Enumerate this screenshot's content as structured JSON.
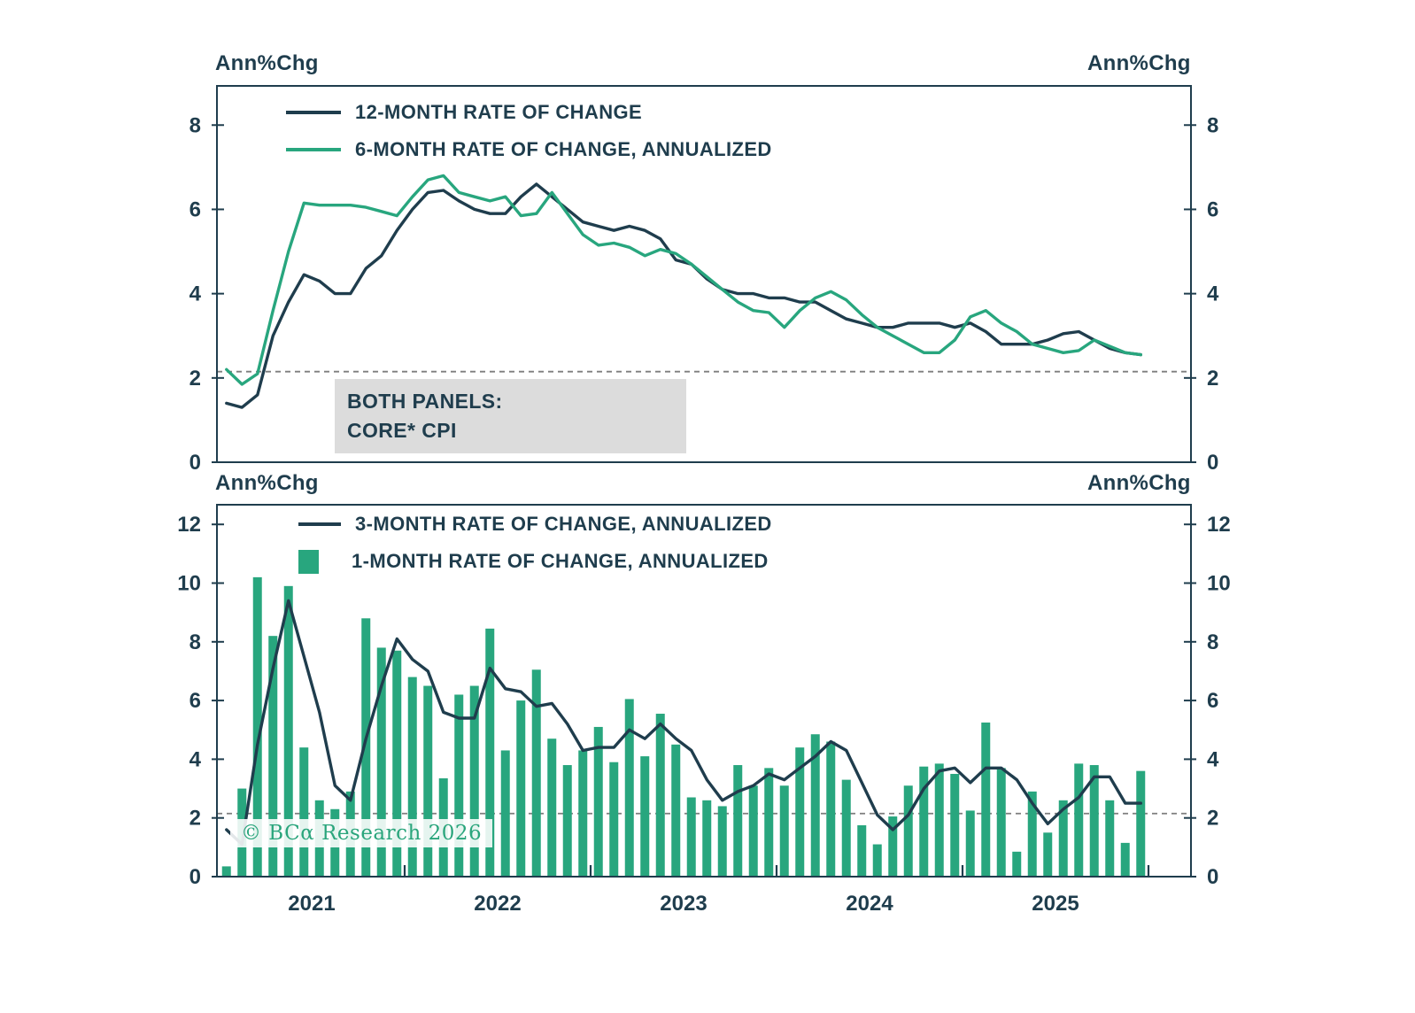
{
  "page": {
    "axis_unit_label": "Ann%Chg",
    "watermark": "© BCα Research 2026",
    "annotation": {
      "line1": "BOTH PANELS:",
      "line2": "CORE* CPI"
    }
  },
  "colors": {
    "dark": "#1F3D4D",
    "green": "#28A67E",
    "dashed": "#7E7E7E",
    "annotation_bg": "#DCDCDC"
  },
  "chart_data": [
    {
      "type": "line",
      "panel": "top",
      "ylabel_left": "Ann%Chg",
      "ylabel_right": "Ann%Chg",
      "ylim": [
        0,
        8.93
      ],
      "yticks": [
        0,
        2,
        4,
        6,
        8
      ],
      "reference_line": 2.15,
      "x_start": "2021-01",
      "x_frequency": "monthly",
      "x_points": 60,
      "legend_position": "top-left",
      "grid": false,
      "series": [
        {
          "name": "12-MONTH RATE OF CHANGE",
          "type": "line",
          "color_key": "dark",
          "values": [
            1.4,
            1.3,
            1.6,
            3.0,
            3.8,
            4.45,
            4.3,
            4.0,
            4.0,
            4.6,
            4.9,
            5.5,
            6.0,
            6.4,
            6.45,
            6.2,
            6.0,
            5.9,
            5.9,
            6.3,
            6.6,
            6.3,
            6.0,
            5.7,
            5.6,
            5.5,
            5.6,
            5.5,
            5.3,
            4.8,
            4.7,
            4.35,
            4.1,
            4.0,
            4.0,
            3.9,
            3.9,
            3.8,
            3.8,
            3.6,
            3.4,
            3.3,
            3.2,
            3.2,
            3.3,
            3.3,
            3.3,
            3.2,
            3.3,
            3.1,
            2.8,
            2.8,
            2.8,
            2.9,
            3.05,
            3.1,
            2.9,
            2.7,
            2.6,
            2.55
          ]
        },
        {
          "name": "6-MONTH RATE OF CHANGE, ANNUALIZED",
          "type": "line",
          "color_key": "green",
          "values": [
            2.2,
            1.85,
            2.1,
            3.6,
            5.0,
            6.15,
            6.1,
            6.1,
            6.1,
            6.05,
            5.95,
            5.85,
            6.3,
            6.7,
            6.8,
            6.4,
            6.3,
            6.2,
            6.3,
            5.85,
            5.9,
            6.4,
            5.9,
            5.4,
            5.15,
            5.2,
            5.1,
            4.9,
            5.05,
            4.95,
            4.7,
            4.4,
            4.1,
            3.8,
            3.6,
            3.55,
            3.2,
            3.6,
            3.9,
            4.05,
            3.85,
            3.5,
            3.2,
            3.0,
            2.8,
            2.6,
            2.6,
            2.9,
            3.45,
            3.6,
            3.3,
            3.1,
            2.8,
            2.7,
            2.6,
            2.65,
            2.9,
            2.75,
            2.6,
            2.55
          ]
        }
      ]
    },
    {
      "type": "bar",
      "panel": "bottom",
      "ylabel_left": "Ann%Chg",
      "ylabel_right": "Ann%Chg",
      "ylim": [
        0,
        12.67
      ],
      "yticks": [
        0,
        2,
        4,
        6,
        8,
        10,
        12
      ],
      "reference_line": 2.15,
      "x_start": "2021-01",
      "x_frequency": "monthly",
      "x_points": 60,
      "year_labels": [
        "2021",
        "2022",
        "2023",
        "2024",
        "2025"
      ],
      "legend_position": "top-left",
      "grid": false,
      "series": [
        {
          "name": "3-MONTH RATE OF CHANGE, ANNUALIZED",
          "type": "line",
          "color_key": "dark",
          "values": [
            1.6,
            1.1,
            4.5,
            7.1,
            9.4,
            7.5,
            5.6,
            3.1,
            2.6,
            4.7,
            6.5,
            8.1,
            7.4,
            7.0,
            5.6,
            5.4,
            5.4,
            7.1,
            6.4,
            6.3,
            5.8,
            5.9,
            5.2,
            4.3,
            4.4,
            4.4,
            5.0,
            4.7,
            5.2,
            4.7,
            4.3,
            3.3,
            2.6,
            2.9,
            3.1,
            3.5,
            3.3,
            3.7,
            4.1,
            4.6,
            4.3,
            3.2,
            2.1,
            1.6,
            2.1,
            3.0,
            3.6,
            3.7,
            3.2,
            3.7,
            3.7,
            3.3,
            2.5,
            1.8,
            2.3,
            2.7,
            3.4,
            3.4,
            2.5,
            2.5
          ]
        },
        {
          "name": "1-MONTH RATE OF CHANGE, ANNUALIZED",
          "type": "bar",
          "color_key": "green",
          "values": [
            0.35,
            3.0,
            10.2,
            8.2,
            9.9,
            4.4,
            2.6,
            2.3,
            2.9,
            8.8,
            7.8,
            7.7,
            6.8,
            6.5,
            3.35,
            6.2,
            6.5,
            8.45,
            4.3,
            6.0,
            7.05,
            4.7,
            3.8,
            4.3,
            5.1,
            3.9,
            6.05,
            4.1,
            5.55,
            4.5,
            2.7,
            2.6,
            2.4,
            3.8,
            3.1,
            3.7,
            3.1,
            4.4,
            4.85,
            4.6,
            3.3,
            1.75,
            1.1,
            2.05,
            3.1,
            3.75,
            3.85,
            3.5,
            2.25,
            5.25,
            3.7,
            0.85,
            2.9,
            1.5,
            2.6,
            3.85,
            3.8,
            2.6,
            1.15,
            3.6
          ]
        }
      ]
    }
  ]
}
